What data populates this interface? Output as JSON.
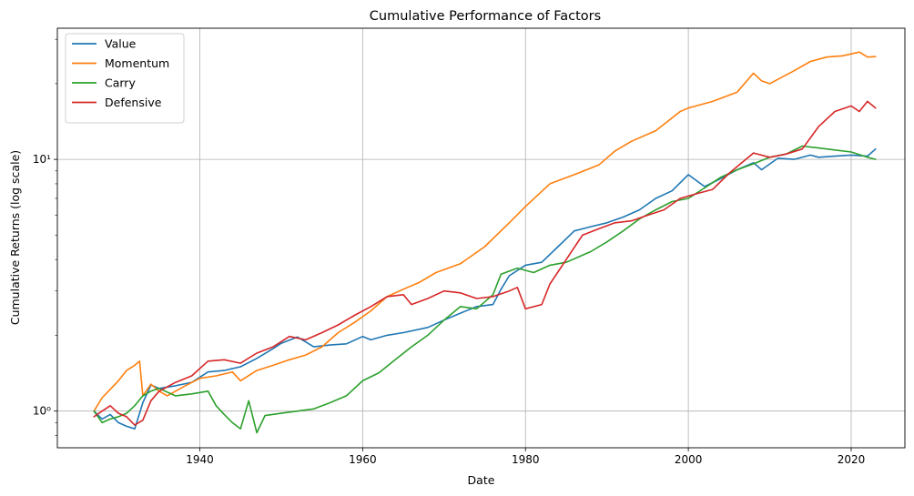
{
  "chart_data": {
    "type": "line",
    "title": "Cumulative Performance of Factors",
    "xlabel": "Date",
    "ylabel": "Cumulative Returns (log scale)",
    "yscale": "log",
    "xlim": [
      1922.5,
      2026.6
    ],
    "ylim": [
      0.715,
      33.2
    ],
    "grid": true,
    "legend": "top-left",
    "xticks": [
      1940,
      1960,
      1980,
      2000,
      2020
    ],
    "xtick_labels": [
      "1940",
      "1960",
      "1980",
      "2000",
      "2020"
    ],
    "yticks": [
      1,
      10
    ],
    "ytick_labels": [
      "10⁰",
      "10¹"
    ],
    "series": [
      {
        "name": "Value",
        "color": "#1f77b4",
        "x": [
          1927,
          1928,
          1929,
          1930,
          1931,
          1932,
          1933,
          1934,
          1935,
          1937,
          1939,
          1941,
          1943,
          1945,
          1947,
          1949,
          1950,
          1952,
          1954,
          1956,
          1958,
          1960,
          1961,
          1963,
          1965,
          1968,
          1970,
          1972,
          1974,
          1976,
          1977,
          1978,
          1980,
          1982,
          1984,
          1986,
          1988,
          1990,
          1992,
          1994,
          1996,
          1998,
          2000,
          2002,
          2004,
          2006,
          2008,
          2009,
          2011,
          2013,
          2015,
          2016,
          2018,
          2020,
          2022,
          2023
        ],
        "values": [
          1.0,
          0.93,
          0.97,
          0.9,
          0.87,
          0.85,
          1.08,
          1.27,
          1.23,
          1.26,
          1.3,
          1.43,
          1.45,
          1.5,
          1.62,
          1.77,
          1.86,
          1.97,
          1.8,
          1.83,
          1.85,
          1.98,
          1.92,
          2.0,
          2.05,
          2.15,
          2.3,
          2.45,
          2.6,
          2.65,
          3.05,
          3.45,
          3.8,
          3.9,
          4.5,
          5.2,
          5.4,
          5.6,
          5.9,
          6.3,
          7.0,
          7.5,
          8.7,
          7.8,
          8.4,
          9.1,
          9.7,
          9.1,
          10.1,
          10.0,
          10.4,
          10.2,
          10.3,
          10.4,
          10.3,
          11.0
        ]
      },
      {
        "name": "Momentum",
        "color": "#ff7f0e",
        "x": [
          1927,
          1928,
          1929,
          1930,
          1931,
          1932,
          1932.6,
          1933,
          1934,
          1935,
          1936,
          1938,
          1940,
          1942,
          1944,
          1945,
          1947,
          1949,
          1951,
          1953,
          1955,
          1957,
          1959,
          1961,
          1963,
          1965,
          1967,
          1969,
          1972,
          1975,
          1978,
          1980,
          1983,
          1986,
          1989,
          1991,
          1993,
          1996,
          1999,
          2000,
          2003,
          2006,
          2008,
          2009,
          2010,
          2013,
          2015,
          2017,
          2019,
          2021,
          2022,
          2023
        ],
        "values": [
          1.0,
          1.13,
          1.22,
          1.32,
          1.45,
          1.52,
          1.58,
          1.15,
          1.28,
          1.2,
          1.15,
          1.25,
          1.35,
          1.38,
          1.43,
          1.32,
          1.45,
          1.52,
          1.6,
          1.67,
          1.8,
          2.05,
          2.25,
          2.5,
          2.85,
          3.05,
          3.25,
          3.55,
          3.85,
          4.5,
          5.6,
          6.5,
          8.0,
          8.7,
          9.5,
          10.8,
          11.8,
          13.0,
          15.5,
          16.0,
          17.0,
          18.5,
          22.0,
          20.5,
          20.0,
          22.5,
          24.5,
          25.5,
          25.8,
          26.7,
          25.5,
          25.6
        ]
      },
      {
        "name": "Carry",
        "color": "#2ca02c",
        "x": [
          1927,
          1928,
          1929,
          1930,
          1931,
          1932,
          1933,
          1934,
          1935,
          1937,
          1939,
          1941,
          1942,
          1943,
          1944,
          1945,
          1946,
          1947,
          1948,
          1950,
          1952,
          1954,
          1956,
          1958,
          1960,
          1962,
          1964,
          1966,
          1968,
          1970,
          1972,
          1974,
          1976,
          1977,
          1979,
          1981,
          1983,
          1985,
          1988,
          1990,
          1992,
          1994,
          1996,
          1998,
          2000,
          2002,
          2004,
          2006,
          2008,
          2010,
          2012,
          2014,
          2016,
          2018,
          2020,
          2022,
          2023
        ],
        "values": [
          1.0,
          0.9,
          0.93,
          0.95,
          0.98,
          1.05,
          1.15,
          1.2,
          1.23,
          1.15,
          1.17,
          1.2,
          1.05,
          0.97,
          0.9,
          0.85,
          1.1,
          0.82,
          0.96,
          0.98,
          1.0,
          1.02,
          1.08,
          1.15,
          1.32,
          1.42,
          1.6,
          1.8,
          2.0,
          2.3,
          2.6,
          2.55,
          2.9,
          3.5,
          3.7,
          3.55,
          3.8,
          3.9,
          4.3,
          4.7,
          5.2,
          5.8,
          6.3,
          6.8,
          7.0,
          7.7,
          8.5,
          9.1,
          9.6,
          10.2,
          10.5,
          11.3,
          11.1,
          10.9,
          10.7,
          10.2,
          10.0
        ]
      },
      {
        "name": "Defensive",
        "color": "#d62728",
        "x": [
          1927,
          1928,
          1929,
          1930,
          1931,
          1932,
          1933,
          1934,
          1935,
          1937,
          1939,
          1941,
          1943,
          1945,
          1947,
          1949,
          1951,
          1953,
          1955,
          1957,
          1959,
          1961,
          1963,
          1965,
          1966,
          1968,
          1970,
          1972,
          1974,
          1976,
          1978,
          1979,
          1980,
          1982,
          1983,
          1985,
          1987,
          1989,
          1991,
          1993,
          1995,
          1997,
          1999,
          2001,
          2003,
          2005,
          2008,
          2010,
          2012,
          2014,
          2016,
          2018,
          2020,
          2021,
          2022,
          2023
        ],
        "values": [
          0.95,
          1.0,
          1.05,
          0.98,
          0.95,
          0.88,
          0.92,
          1.1,
          1.2,
          1.3,
          1.38,
          1.58,
          1.6,
          1.55,
          1.7,
          1.8,
          1.98,
          1.92,
          2.05,
          2.2,
          2.4,
          2.6,
          2.85,
          2.9,
          2.65,
          2.8,
          3.0,
          2.95,
          2.8,
          2.85,
          3.0,
          3.1,
          2.55,
          2.65,
          3.2,
          4.0,
          5.0,
          5.3,
          5.6,
          5.7,
          6.0,
          6.3,
          7.0,
          7.3,
          7.6,
          8.8,
          10.6,
          10.2,
          10.5,
          11.0,
          13.5,
          15.5,
          16.3,
          15.5,
          17.0,
          16.0
        ]
      }
    ]
  }
}
